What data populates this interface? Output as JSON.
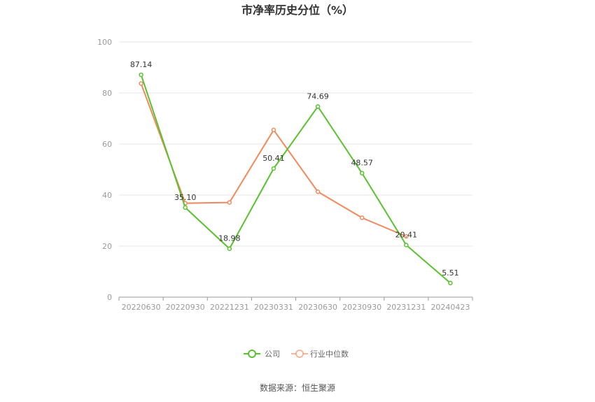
{
  "chart_data": {
    "type": "line",
    "title": "市净率历史分位（%）",
    "categories": [
      "20220630",
      "20220930",
      "20221231",
      "20230331",
      "20230630",
      "20230930",
      "20231231",
      "20240423"
    ],
    "ylim": [
      0,
      100
    ],
    "yticks": [
      "0",
      "20",
      "40",
      "60",
      "80",
      "100"
    ],
    "grid": true,
    "legend_position": "bottom",
    "series": [
      {
        "name": "公司",
        "color": "#5ac12f",
        "values": [
          87.14,
          35.1,
          18.98,
          50.41,
          74.69,
          48.57,
          20.41,
          5.51
        ],
        "labels": [
          "87.14",
          "35.10",
          "18.98",
          "50.41",
          "74.69",
          "48.57",
          "20.41",
          "5.51"
        ]
      },
      {
        "name": "行业中位数",
        "color": "#f0895c",
        "values": [
          83.7,
          36.8,
          37.1,
          65.5,
          41.3,
          31.1,
          23.8,
          null
        ],
        "labels": []
      }
    ]
  },
  "source_text": "数据来源：恒生聚源"
}
